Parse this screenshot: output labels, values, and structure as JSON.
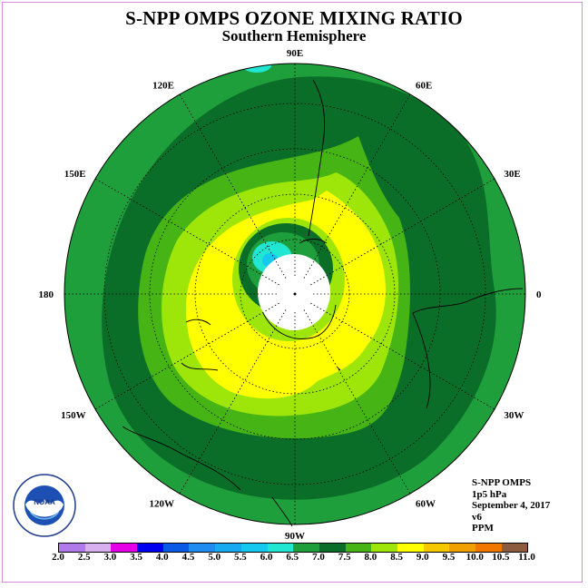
{
  "title": "S-NPP OMPS OZONE MIXING RATIO",
  "subtitle": "Southern Hemisphere",
  "info": {
    "instrument": "S-NPP OMPS",
    "level": "1p5 hPa",
    "date": "September 4, 2017",
    "version": "v6",
    "units": "PPM"
  },
  "logo_text": "NOAA",
  "longitude_labels": [
    {
      "text": "90W",
      "angle": -90
    },
    {
      "text": "60W",
      "angle": -60
    },
    {
      "text": "30W",
      "angle": -30
    },
    {
      "text": "0",
      "angle": 0
    },
    {
      "text": "30E",
      "angle": 30
    },
    {
      "text": "60E",
      "angle": 60
    },
    {
      "text": "90E",
      "angle": 90
    },
    {
      "text": "120E",
      "angle": 120
    },
    {
      "text": "150E",
      "angle": 150
    },
    {
      "text": "180",
      "angle": 180
    },
    {
      "text": "150W",
      "angle": 210
    },
    {
      "text": "120W",
      "angle": 240
    }
  ],
  "colorbar": {
    "labels": [
      "2.0",
      "2.5",
      "3.0",
      "3.5",
      "4.0",
      "4.5",
      "5.0",
      "5.5",
      "6.0",
      "6.5",
      "7.0",
      "7.5",
      "8.0",
      "8.5",
      "9.0",
      "9.5",
      "10.0",
      "10.5",
      "11.0"
    ],
    "colors": [
      "#b07ae8",
      "#d8b0f0",
      "#e600e6",
      "#0000f0",
      "#0a5ae6",
      "#1e8cf0",
      "#17aaf0",
      "#14c8f0",
      "#20e6d2",
      "#1f9e3c",
      "#0a6e28",
      "#46b414",
      "#9ee60a",
      "#ffff00",
      "#f5c800",
      "#f0a000",
      "#f07800",
      "#f00000",
      "#8c5a3c"
    ]
  }
}
